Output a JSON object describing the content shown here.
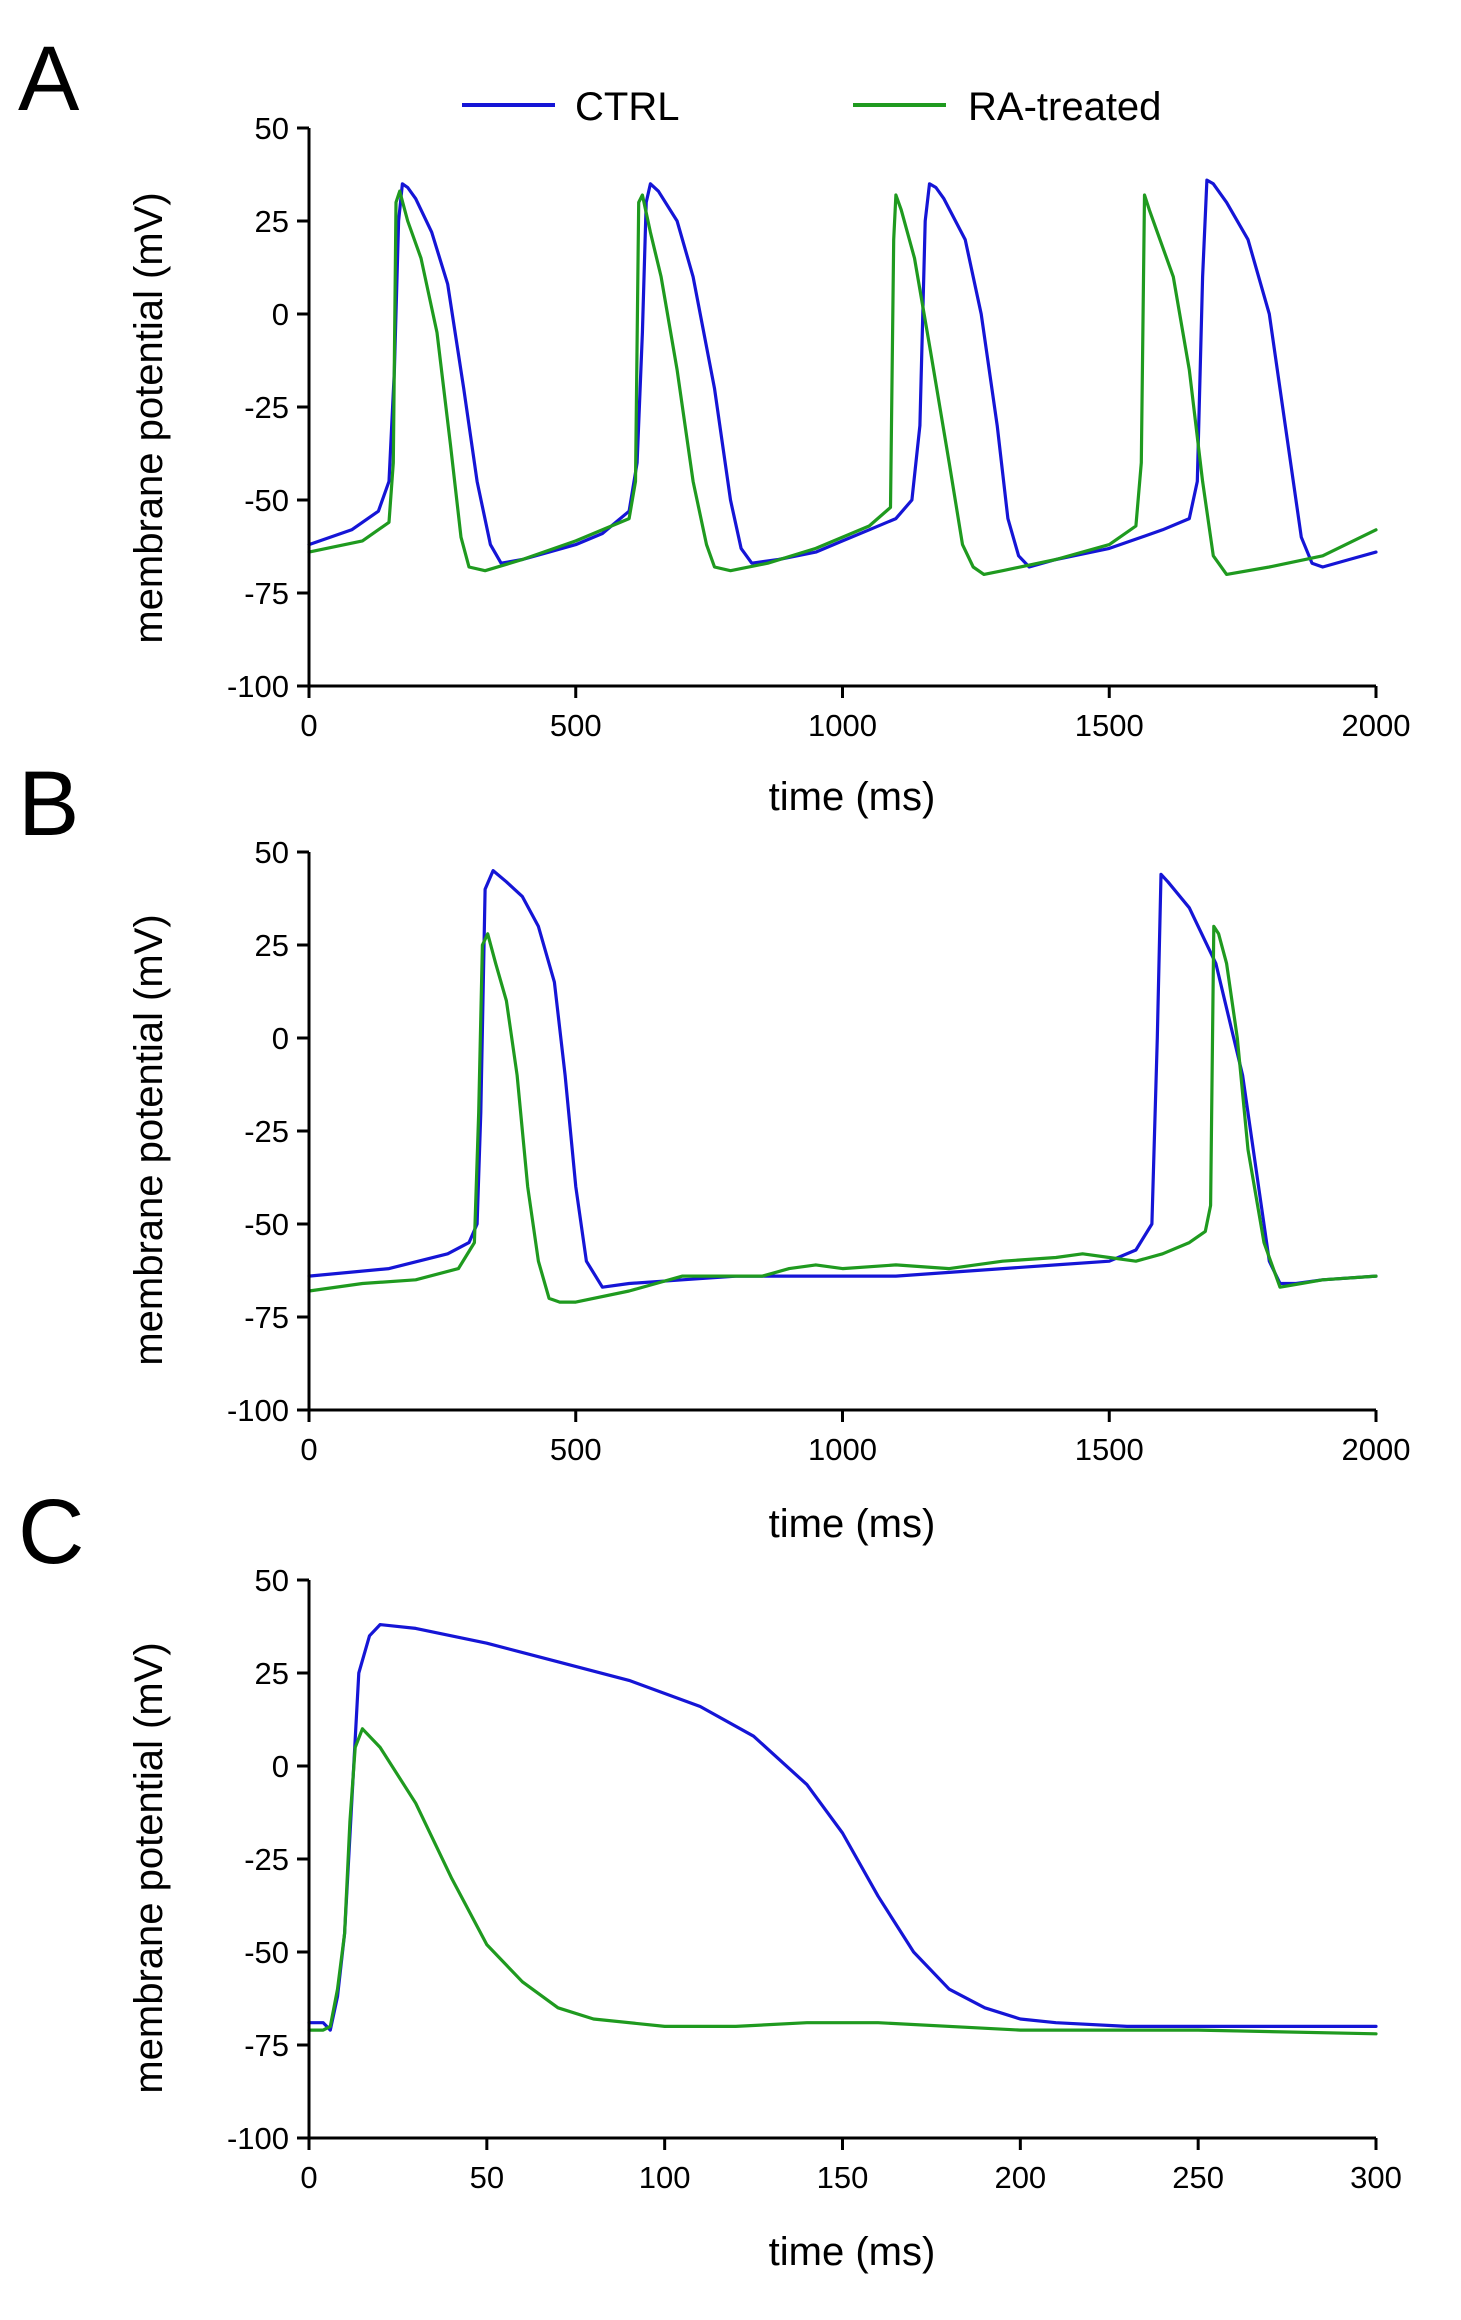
{
  "colors": {
    "ctrl": "#1515d6",
    "ra": "#1f9a1f"
  },
  "legend": {
    "ctrl_label": "CTRL",
    "ra_label": "RA-treated"
  },
  "chart_data": [
    {
      "panel_label": "A",
      "type": "line",
      "xlabel": "time (ms)",
      "ylabel": "membrane potential (mV)",
      "xlim": [
        0,
        2000
      ],
      "ylim": [
        -100,
        50
      ],
      "xticks": [
        0,
        500,
        1000,
        1500,
        2000
      ],
      "xtick_labels": [
        "0",
        "500",
        "1000",
        "1500",
        "2000"
      ],
      "yticks": [
        50,
        25,
        0,
        -25,
        -50,
        -75,
        -100
      ],
      "ytick_labels": [
        "50",
        "25",
        "0",
        "-25",
        "-50",
        "-75",
        "-100"
      ],
      "series": [
        {
          "name": "CTRL",
          "color_key": "ctrl",
          "x": [
            0,
            80,
            130,
            150,
            160,
            168,
            175,
            185,
            200,
            230,
            260,
            290,
            315,
            340,
            360,
            400,
            450,
            500,
            550,
            600,
            615,
            625,
            632,
            640,
            655,
            690,
            720,
            760,
            790,
            810,
            830,
            880,
            950,
            1000,
            1050,
            1100,
            1130,
            1145,
            1155,
            1163,
            1175,
            1190,
            1230,
            1260,
            1290,
            1310,
            1330,
            1350,
            1400,
            1500,
            1600,
            1650,
            1665,
            1675,
            1683,
            1695,
            1720,
            1760,
            1800,
            1830,
            1860,
            1880,
            1900,
            1950,
            2000
          ],
          "y": [
            -62,
            -58,
            -53,
            -45,
            -15,
            25,
            35,
            34,
            31,
            22,
            8,
            -20,
            -45,
            -62,
            -67,
            -66,
            -64,
            -62,
            -59,
            -53,
            -40,
            -5,
            30,
            35,
            33,
            25,
            10,
            -20,
            -50,
            -63,
            -67,
            -66,
            -64,
            -61,
            -58,
            -55,
            -50,
            -30,
            25,
            35,
            34,
            31,
            20,
            0,
            -30,
            -55,
            -65,
            -68,
            -66,
            -63,
            -58,
            -55,
            -45,
            10,
            36,
            35,
            30,
            20,
            0,
            -30,
            -60,
            -67,
            -68,
            -66,
            -64
          ]
        },
        {
          "name": "RA-treated",
          "color_key": "ra",
          "x": [
            0,
            100,
            150,
            158,
            163,
            170,
            185,
            210,
            240,
            265,
            285,
            300,
            330,
            400,
            500,
            600,
            612,
            618,
            625,
            640,
            660,
            690,
            720,
            745,
            760,
            790,
            860,
            950,
            1050,
            1090,
            1096,
            1100,
            1110,
            1135,
            1165,
            1200,
            1225,
            1245,
            1265,
            1300,
            1400,
            1500,
            1550,
            1560,
            1566,
            1575,
            1590,
            1620,
            1650,
            1675,
            1695,
            1720,
            1800,
            1900,
            2000
          ],
          "y": [
            -64,
            -61,
            -56,
            -40,
            30,
            33,
            25,
            15,
            -5,
            -35,
            -60,
            -68,
            -69,
            -66,
            -61,
            -55,
            -45,
            30,
            32,
            22,
            10,
            -15,
            -45,
            -62,
            -68,
            -69,
            -67,
            -63,
            -57,
            -52,
            20,
            32,
            28,
            15,
            -10,
            -40,
            -62,
            -68,
            -70,
            -69,
            -66,
            -62,
            -57,
            -40,
            32,
            28,
            22,
            10,
            -15,
            -45,
            -65,
            -70,
            -68,
            -65,
            -58
          ]
        }
      ]
    },
    {
      "panel_label": "B",
      "type": "line",
      "xlabel": "time (ms)",
      "ylabel": "membrane potential (mV)",
      "xlim": [
        0,
        2000
      ],
      "ylim": [
        -100,
        50
      ],
      "xticks": [
        0,
        500,
        1000,
        1500,
        2000
      ],
      "xtick_labels": [
        "0",
        "500",
        "1000",
        "1500",
        "2000"
      ],
      "yticks": [
        50,
        25,
        0,
        -25,
        -50,
        -75,
        -100
      ],
      "ytick_labels": [
        "50",
        "25",
        "0",
        "-25",
        "-50",
        "-75",
        "-100"
      ],
      "series": [
        {
          "name": "CTRL",
          "color_key": "ctrl",
          "x": [
            0,
            150,
            260,
            300,
            315,
            322,
            330,
            345,
            370,
            400,
            430,
            460,
            480,
            500,
            520,
            550,
            600,
            700,
            800,
            900,
            1000,
            1100,
            1200,
            1300,
            1400,
            1500,
            1550,
            1580,
            1590,
            1597,
            1610,
            1650,
            1700,
            1750,
            1780,
            1800,
            1820,
            1850,
            1900,
            2000
          ],
          "y": [
            -64,
            -62,
            -58,
            -55,
            -50,
            -20,
            40,
            45,
            42,
            38,
            30,
            15,
            -10,
            -40,
            -60,
            -67,
            -66,
            -65,
            -64,
            -64,
            -64,
            -64,
            -63,
            -62,
            -61,
            -60,
            -57,
            -50,
            0,
            44,
            42,
            35,
            20,
            -10,
            -40,
            -60,
            -66,
            -66,
            -65,
            -64
          ]
        },
        {
          "name": "RA-treated",
          "color_key": "ra",
          "x": [
            0,
            100,
            200,
            280,
            310,
            318,
            325,
            335,
            350,
            370,
            390,
            410,
            430,
            450,
            470,
            500,
            600,
            700,
            780,
            850,
            900,
            950,
            1000,
            1100,
            1200,
            1300,
            1400,
            1450,
            1500,
            1550,
            1600,
            1650,
            1680,
            1690,
            1696,
            1705,
            1720,
            1740,
            1760,
            1790,
            1820,
            1860,
            1900,
            2000
          ],
          "y": [
            -68,
            -66,
            -65,
            -62,
            -55,
            -20,
            25,
            28,
            20,
            10,
            -10,
            -40,
            -60,
            -70,
            -71,
            -71,
            -68,
            -64,
            -64,
            -64,
            -62,
            -61,
            -62,
            -61,
            -62,
            -60,
            -59,
            -58,
            -59,
            -60,
            -58,
            -55,
            -52,
            -45,
            30,
            28,
            20,
            0,
            -30,
            -55,
            -67,
            -66,
            -65,
            -64
          ]
        }
      ]
    },
    {
      "panel_label": "C",
      "type": "line",
      "xlabel": "time (ms)",
      "ylabel": "membrane potential (mV)",
      "xlim": [
        0,
        300
      ],
      "ylim": [
        -100,
        50
      ],
      "xticks": [
        0,
        50,
        100,
        150,
        200,
        250,
        300
      ],
      "xtick_labels": [
        "0",
        "50",
        "100",
        "150",
        "200",
        "250",
        "300"
      ],
      "yticks": [
        50,
        25,
        0,
        -25,
        -50,
        -75,
        -100
      ],
      "ytick_labels": [
        "50",
        "25",
        "0",
        "-25",
        "-50",
        "-75",
        "-100"
      ],
      "series": [
        {
          "name": "CTRL",
          "color_key": "ctrl",
          "x": [
            0,
            4,
            6,
            8,
            10,
            12,
            14,
            17,
            20,
            30,
            50,
            70,
            90,
            110,
            125,
            140,
            150,
            160,
            170,
            180,
            190,
            200,
            210,
            230,
            260,
            300
          ],
          "y": [
            -69,
            -69,
            -71,
            -62,
            -45,
            -10,
            25,
            35,
            38,
            37,
            33,
            28,
            23,
            16,
            8,
            -5,
            -18,
            -35,
            -50,
            -60,
            -65,
            -68,
            -69,
            -70,
            -70,
            -70
          ]
        },
        {
          "name": "RA-treated",
          "color_key": "ra",
          "x": [
            0,
            4,
            6,
            8,
            10,
            11.5,
            13,
            15,
            20,
            30,
            40,
            50,
            60,
            70,
            80,
            100,
            120,
            140,
            160,
            200,
            250,
            300
          ],
          "y": [
            -71,
            -71,
            -70,
            -60,
            -45,
            -15,
            5,
            10,
            5,
            -10,
            -30,
            -48,
            -58,
            -65,
            -68,
            -70,
            -70,
            -69,
            -69,
            -71,
            -71,
            -72
          ]
        }
      ]
    }
  ]
}
